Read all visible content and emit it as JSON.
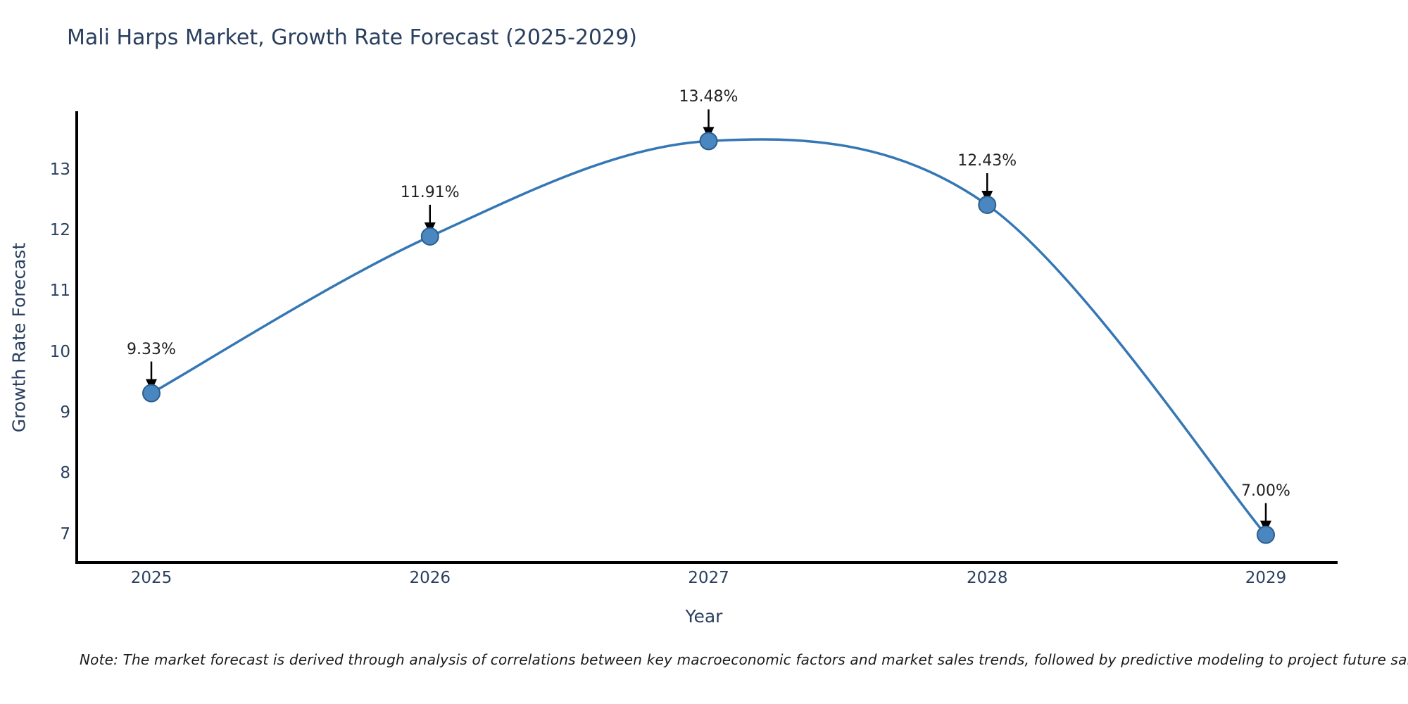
{
  "chart_data": {
    "type": "line",
    "title": "Mali Harps Market, Growth Rate Forecast (2025-2029)",
    "xlabel": "Year",
    "ylabel": "Growth Rate Forecast",
    "footnote": "Note: The market forecast is derived through analysis of correlations between key macroeconomic factors and market sales trends, followed by predictive modeling to project future sales",
    "x": [
      2025,
      2026,
      2027,
      2028,
      2029
    ],
    "values": [
      9.33,
      11.91,
      13.48,
      12.43,
      7.0
    ],
    "point_labels": [
      "9.33%",
      "11.91%",
      "13.48%",
      "12.43%",
      "7.00%"
    ],
    "yticks": [
      7,
      8,
      9,
      10,
      11,
      12,
      13
    ],
    "ylim": [
      6.5,
      14.0
    ],
    "xlim": [
      2024.73,
      2029.26
    ],
    "grid": false,
    "legend": "none",
    "line_style": "smooth-spline",
    "annotation_style": "black-down-arrow",
    "colors": {
      "line": "#3577b5",
      "marker_fill": "#4a86c0",
      "marker_edge": "#2b5f8e",
      "axis": "#000000",
      "text": "#2a3f5f",
      "annotation_text": "#222222",
      "background": "#ffffff"
    }
  }
}
